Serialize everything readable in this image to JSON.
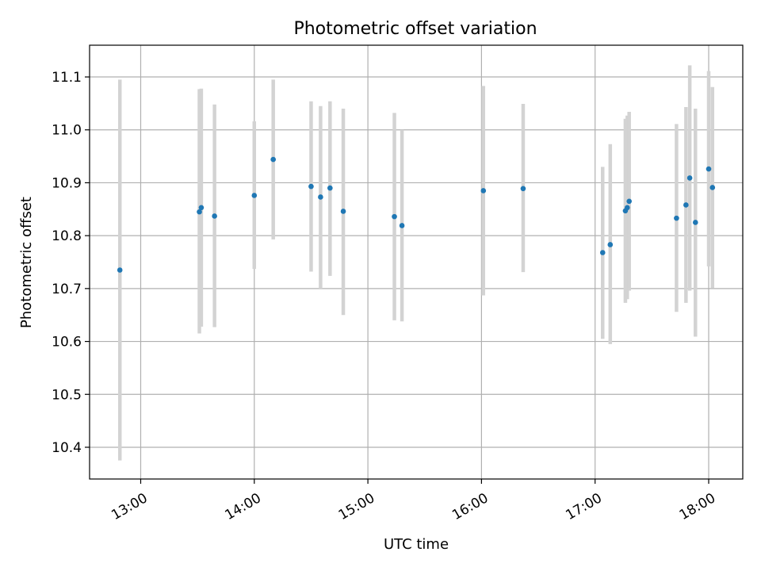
{
  "chart_data": {
    "type": "scatter",
    "title": "Photometric offset variation",
    "xlabel": "UTC time",
    "ylabel": "Photometric offset",
    "x_ticks": [
      "13:00",
      "14:00",
      "15:00",
      "16:00",
      "17:00",
      "18:00"
    ],
    "y_ticks": [
      "10.4",
      "10.5",
      "10.6",
      "10.7",
      "10.8",
      "10.9",
      "11.0",
      "11.1"
    ],
    "xlim": [
      "12:33",
      "18:18"
    ],
    "ylim": [
      10.34,
      11.16
    ],
    "grid": true,
    "colors": {
      "point": "#1f77b4",
      "errorbar": "#d3d3d3",
      "grid": "#b0b0b0"
    },
    "series": [
      {
        "points": [
          {
            "x": "12:49",
            "y": 10.735,
            "ylo": 10.375,
            "yhi": 11.095
          },
          {
            "x": "13:31",
            "y": 10.845,
            "ylo": 10.615,
            "yhi": 11.077
          },
          {
            "x": "13:32",
            "y": 10.853,
            "ylo": 10.628,
            "yhi": 11.078
          },
          {
            "x": "13:39",
            "y": 10.837,
            "ylo": 10.627,
            "yhi": 11.048
          },
          {
            "x": "14:00",
            "y": 10.876,
            "ylo": 10.737,
            "yhi": 11.016
          },
          {
            "x": "14:10",
            "y": 10.944,
            "ylo": 10.793,
            "yhi": 11.095
          },
          {
            "x": "14:30",
            "y": 10.893,
            "ylo": 10.732,
            "yhi": 11.054
          },
          {
            "x": "14:35",
            "y": 10.873,
            "ylo": 10.7,
            "yhi": 11.045
          },
          {
            "x": "14:40",
            "y": 10.89,
            "ylo": 10.724,
            "yhi": 11.054
          },
          {
            "x": "14:47",
            "y": 10.846,
            "ylo": 10.65,
            "yhi": 11.04
          },
          {
            "x": "15:14",
            "y": 10.836,
            "ylo": 10.64,
            "yhi": 11.032
          },
          {
            "x": "15:18",
            "y": 10.819,
            "ylo": 10.638,
            "yhi": 11.0
          },
          {
            "x": "16:01",
            "y": 10.885,
            "ylo": 10.687,
            "yhi": 11.083
          },
          {
            "x": "16:22",
            "y": 10.889,
            "ylo": 10.731,
            "yhi": 11.049
          },
          {
            "x": "17:04",
            "y": 10.768,
            "ylo": 10.605,
            "yhi": 10.93
          },
          {
            "x": "17:08",
            "y": 10.783,
            "ylo": 10.595,
            "yhi": 10.973
          },
          {
            "x": "17:16",
            "y": 10.847,
            "ylo": 10.673,
            "yhi": 11.021
          },
          {
            "x": "17:17",
            "y": 10.853,
            "ylo": 10.68,
            "yhi": 11.027
          },
          {
            "x": "17:18",
            "y": 10.865,
            "ylo": 10.696,
            "yhi": 11.034
          },
          {
            "x": "17:43",
            "y": 10.833,
            "ylo": 10.656,
            "yhi": 11.011
          },
          {
            "x": "17:48",
            "y": 10.858,
            "ylo": 10.673,
            "yhi": 11.043
          },
          {
            "x": "17:50",
            "y": 10.909,
            "ylo": 10.696,
            "yhi": 11.122
          },
          {
            "x": "17:53",
            "y": 10.825,
            "ylo": 10.609,
            "yhi": 11.04
          },
          {
            "x": "18:00",
            "y": 10.926,
            "ylo": 10.742,
            "yhi": 11.111
          },
          {
            "x": "18:02",
            "y": 10.891,
            "ylo": 10.701,
            "yhi": 11.081
          }
        ]
      }
    ]
  }
}
